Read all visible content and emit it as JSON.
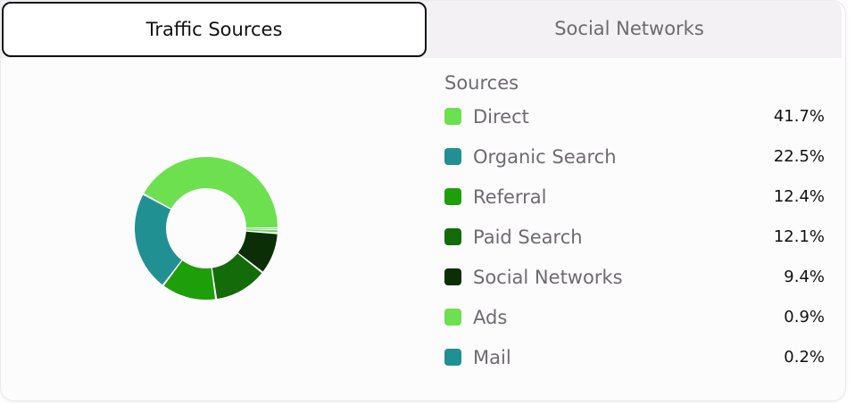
{
  "tabs": [
    {
      "label": "Traffic Sources",
      "active": true
    },
    {
      "label": "Social Networks",
      "active": false
    }
  ],
  "legend_title": "Sources",
  "chart_data": {
    "type": "pie",
    "donut": true,
    "categories": [
      "Direct",
      "Organic Search",
      "Referral",
      "Paid Search",
      "Social Networks",
      "Ads",
      "Mail"
    ],
    "values": [
      41.7,
      22.5,
      12.4,
      12.1,
      9.4,
      0.9,
      0.2
    ],
    "value_labels": [
      "41.7%",
      "22.5%",
      "12.4%",
      "12.1%",
      "9.4%",
      "0.9%",
      "0.2%"
    ],
    "colors": [
      "#6de04f",
      "#219092",
      "#1e9e08",
      "#146b0a",
      "#0b2e06",
      "#6de04f",
      "#219092"
    ],
    "legend_position": "right"
  }
}
